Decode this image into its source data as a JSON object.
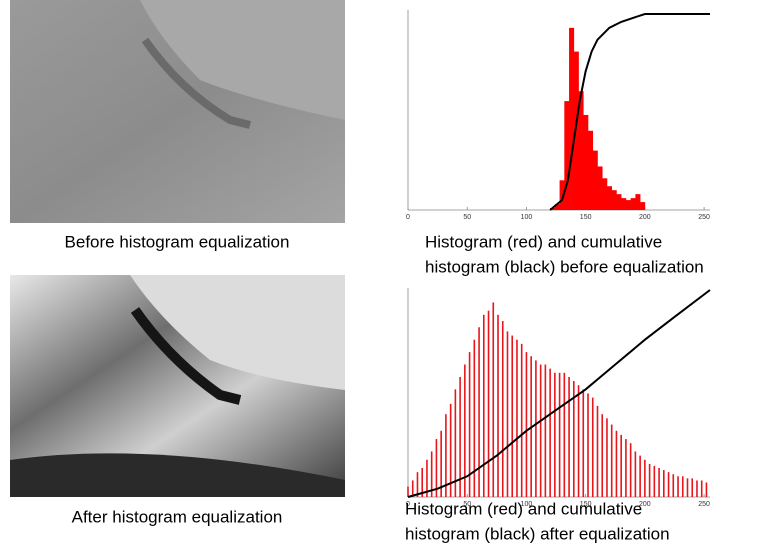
{
  "images": [
    {
      "caption": "Before histogram equalization"
    },
    {
      "caption": "After histogram equalization"
    }
  ],
  "chart_data": [
    {
      "type": "histogram",
      "caption_lines": [
        "Histogram (red) and cumulative",
        "histogram (black) before equalization"
      ],
      "bins": [
        120,
        124,
        128,
        132,
        136,
        140,
        144,
        148,
        152,
        156,
        160,
        164,
        168,
        172,
        176,
        180,
        184,
        188,
        192,
        196,
        200
      ],
      "values": [
        1,
        3,
        15,
        55,
        92,
        80,
        60,
        48,
        40,
        30,
        22,
        16,
        12,
        10,
        8,
        6,
        5,
        6,
        8,
        4
      ],
      "color": "#ff0000",
      "cumulative": {
        "x": [
          120,
          130,
          135,
          140,
          145,
          150,
          155,
          160,
          170,
          180,
          190,
          200,
          255
        ],
        "values": [
          0,
          5,
          15,
          35,
          55,
          70,
          80,
          86,
          92,
          95,
          97,
          99,
          99
        ],
        "color": "#000000"
      },
      "xlim": [
        0,
        255
      ],
      "xticks": [
        0,
        50,
        100,
        150,
        200,
        250
      ],
      "ylim": [
        0,
        100
      ]
    },
    {
      "type": "bar",
      "caption_lines": [
        "Histogram (red) and cumulative",
        "histogram (black) after equalization"
      ],
      "x": [
        0,
        4,
        8,
        12,
        16,
        20,
        24,
        28,
        32,
        36,
        40,
        44,
        48,
        52,
        56,
        60,
        64,
        68,
        72,
        76,
        80,
        84,
        88,
        92,
        96,
        100,
        104,
        108,
        112,
        116,
        120,
        124,
        128,
        132,
        136,
        140,
        144,
        148,
        152,
        156,
        160,
        164,
        168,
        172,
        176,
        180,
        184,
        188,
        192,
        196,
        200,
        204,
        208,
        212,
        216,
        220,
        224,
        228,
        232,
        236,
        240,
        244,
        248,
        252
      ],
      "values": [
        5,
        8,
        12,
        14,
        18,
        22,
        28,
        32,
        40,
        45,
        52,
        58,
        64,
        70,
        76,
        82,
        88,
        90,
        94,
        88,
        85,
        80,
        78,
        76,
        74,
        70,
        68,
        66,
        64,
        64,
        62,
        60,
        60,
        60,
        58,
        56,
        54,
        52,
        50,
        48,
        44,
        40,
        38,
        35,
        32,
        30,
        28,
        26,
        22,
        20,
        18,
        16,
        15,
        14,
        13,
        12,
        11,
        10,
        10,
        9,
        9,
        8,
        8,
        7
      ],
      "color": "#e8151b",
      "cumulative": {
        "x": [
          0,
          25,
          50,
          75,
          100,
          125,
          150,
          175,
          200,
          225,
          255
        ],
        "values": [
          0,
          4,
          10,
          20,
          32,
          42,
          52,
          64,
          76,
          87,
          100
        ],
        "color": "#000000"
      },
      "xlim": [
        0,
        255
      ],
      "xticks": [
        0,
        50,
        100,
        150,
        200,
        250
      ],
      "ylim": [
        0,
        100
      ]
    }
  ]
}
